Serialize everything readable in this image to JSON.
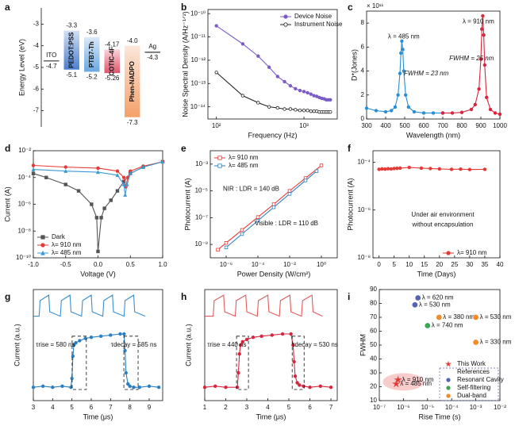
{
  "chart_data": [
    {
      "type": "energy",
      "label": "a",
      "ylabel": "Energy Level (eV)",
      "ylim": [
        -7.75,
        -2.25
      ],
      "yticks": [
        -3,
        -4,
        -5,
        -6,
        -7
      ],
      "categories": [
        "ITO",
        "PEDOT:PSS",
        "PTB7-Th",
        "COTIC-4F",
        "Phen-NADPO",
        "Ag"
      ],
      "values_top": [
        null,
        -3.3,
        -3.6,
        -4.17,
        -4.0,
        null
      ],
      "value_labels_top": [
        null,
        "-3.3",
        "-3.6",
        "-4.17",
        "-4.0",
        null
      ],
      "values_bottom": [
        -4.7,
        -5.1,
        -5.2,
        -5.26,
        -7.3,
        -4.3
      ],
      "colors": [
        "#333333",
        "#4a7fd0",
        "#6aa8e0",
        "#e0556a",
        "#f4a06a",
        "#333333"
      ]
    },
    {
      "type": "line",
      "label": "b",
      "xlabel": "Frequency (Hz)",
      "ylabel": "Noise Spectral Density (A/Hz⁻¹ᐟ²)",
      "xlog": true,
      "ylog": true,
      "xlim": [
        80,
        2400
      ],
      "xticks": [
        {
          "value": 100,
          "label": "10²"
        },
        {
          "value": 1000,
          "label": "10³"
        }
      ],
      "ylim": [
        3e-15,
        1.5e-10
      ],
      "yticks": [
        {
          "value": 1e-10,
          "label": "10⁻¹⁰"
        },
        {
          "value": 1e-11,
          "label": "10⁻¹¹"
        },
        {
          "value": 1e-12,
          "label": "10⁻¹²"
        },
        {
          "value": 1e-13,
          "label": "10⁻¹³"
        },
        {
          "value": 1e-14,
          "label": "10⁻¹⁴"
        }
      ],
      "legend": "upper-right",
      "x": [
        100,
        200,
        300,
        400,
        500,
        600,
        700,
        800,
        900,
        1000,
        1100,
        1200,
        1300,
        1400,
        1500,
        1600,
        1700,
        1800,
        1900,
        2000
      ],
      "series": [
        {
          "name": "Device Noise",
          "color": "#7b5cc7",
          "marker": "circle",
          "filled": true,
          "values": [
            3e-11,
            5e-12,
            1.5e-12,
            5e-13,
            2e-13,
            1.2e-13,
            8e-14,
            6e-14,
            5e-14,
            4.5e-14,
            4e-14,
            3.5e-14,
            3e-14,
            2.8e-14,
            2.5e-14,
            2.3e-14,
            2.2e-14,
            2e-14,
            2e-14,
            2e-14
          ]
        },
        {
          "name": "Instrument Noise",
          "color": "#222222",
          "marker": "circle",
          "filled": false,
          "values": [
            3e-13,
            3e-14,
            1.5e-14,
            1e-14,
            9e-15,
            8e-15,
            8e-15,
            7.5e-15,
            7e-15,
            7e-15,
            7e-15,
            6.5e-15,
            6.5e-15,
            6.5e-15,
            6e-15,
            6e-15,
            6e-15,
            6e-15,
            6e-15,
            6e-15
          ]
        }
      ]
    },
    {
      "type": "line",
      "label": "c",
      "xlabel": "Wavelength (nm)",
      "ylabel": "D*(Jones)",
      "y_multiplier": "× 10¹¹",
      "xlim": [
        300,
        1000
      ],
      "xticks": [
        300,
        400,
        500,
        600,
        700,
        800,
        900,
        1000
      ],
      "ylim": [
        0,
        9
      ],
      "yticks": [
        0,
        2,
        4,
        6,
        8
      ],
      "annotations": [
        "λ = 485 nm",
        "λ = 910 nm",
        "FWHM = 23 nm",
        "FWHM = 25 nm"
      ],
      "series": [
        {
          "color": "#2a8fd6",
          "marker": "circle",
          "filled": true,
          "x": [
            300,
            350,
            400,
            430,
            450,
            465,
            475,
            480,
            485,
            490,
            495,
            505,
            520,
            550,
            600,
            650,
            700
          ],
          "values": [
            0.9,
            0.7,
            0.6,
            0.7,
            1.0,
            2.0,
            3.8,
            5.5,
            6.5,
            5.8,
            4.0,
            2.0,
            1.0,
            0.6,
            0.5,
            0.5,
            0.5
          ]
        },
        {
          "color": "#d7263d",
          "marker": "circle",
          "filled": true,
          "x": [
            700,
            750,
            800,
            850,
            870,
            890,
            900,
            905,
            910,
            915,
            920,
            930,
            950,
            975,
            1000
          ],
          "values": [
            0.5,
            0.5,
            0.55,
            0.8,
            1.2,
            2.5,
            5.0,
            7.5,
            8.6,
            7.0,
            4.5,
            1.8,
            0.8,
            0.5,
            0.4
          ]
        }
      ]
    },
    {
      "type": "line",
      "label": "d",
      "xlabel": "Voltage (V)",
      "ylabel": "Current (A)",
      "ylog": true,
      "xlim": [
        -1,
        1
      ],
      "xticks": [
        {
          "value": -1,
          "label": "-1.0"
        },
        -0.5,
        {
          "value": 0,
          "label": "0.0"
        },
        0.5,
        {
          "value": 1,
          "label": "1.0"
        }
      ],
      "ylim": [
        1e-10,
        0.01
      ],
      "yticks": [
        {
          "value": 1e-10,
          "label": "10⁻¹⁰"
        },
        {
          "value": 1e-08,
          "label": "10⁻⁸"
        },
        {
          "value": 1e-06,
          "label": "10⁻⁶"
        },
        {
          "value": 0.0001,
          "label": "10⁻⁴"
        },
        {
          "value": 0.01,
          "label": "10⁻²"
        }
      ],
      "legend": "lower-left",
      "series": [
        {
          "name": "Dark",
          "color": "#555555",
          "marker": "square",
          "filled": true,
          "x": [
            -1,
            -0.8,
            -0.5,
            -0.3,
            -0.1,
            -0.02,
            0,
            0.05,
            0.1,
            0.2,
            0.3,
            0.4,
            0.5,
            0.7,
            1
          ],
          "values": [
            0.0002,
            0.0001,
            3e-05,
            1e-05,
            1e-06,
            1e-07,
            3e-10,
            1e-07,
            5e-07,
            2e-06,
            1e-05,
            5e-05,
            0.0002,
            0.0006,
            0.0015
          ]
        },
        {
          "name": "λ= 910 nm",
          "color": "#e53935",
          "marker": "circle",
          "filled": true,
          "x": [
            -1,
            -0.5,
            0,
            0.3,
            0.4,
            0.43,
            0.46,
            0.5,
            0.7,
            1
          ],
          "values": [
            0.0008,
            0.0006,
            0.0005,
            0.0003,
            0.0001,
            2e-05,
            0.0001,
            0.0003,
            0.0007,
            0.0015
          ]
        },
        {
          "name": "λ= 485 nm",
          "color": "#3a9bd5",
          "marker": "triangle",
          "filled": true,
          "x": [
            -1,
            -0.5,
            0,
            0.3,
            0.4,
            0.42,
            0.45,
            0.5,
            0.7,
            1
          ],
          "values": [
            0.0004,
            0.0003,
            0.00025,
            0.00015,
            3e-05,
            5e-06,
            3e-05,
            0.0002,
            0.0006,
            0.0015
          ]
        }
      ]
    },
    {
      "type": "line",
      "label": "e",
      "xlabel": "Power Density (W/cm²)",
      "ylabel": "Photocurrent (A)",
      "xlog": true,
      "ylog": true,
      "xlim": [
        1e-07,
        10
      ],
      "xticks": [
        {
          "value": 1e-06,
          "label": "10⁻⁶"
        },
        {
          "value": 0.0001,
          "label": "10⁻⁴"
        },
        {
          "value": 0.01,
          "label": "10⁻²"
        },
        {
          "value": 1,
          "label": "10⁰"
        }
      ],
      "ylim": [
        1e-10,
        0.01
      ],
      "yticks": [
        {
          "value": 0.001,
          "label": "10⁻³"
        },
        {
          "value": 1e-05,
          "label": "10⁻⁵"
        },
        {
          "value": 1e-07,
          "label": "10⁻⁷"
        },
        {
          "value": 1e-09,
          "label": "10⁻⁹"
        }
      ],
      "legend": "upper-left",
      "annotations": [
        "NIR : LDR = 140 dB",
        "Visible : LDR = 110 dB"
      ],
      "series": [
        {
          "name": "λ= 910 nm",
          "color": "#e53935",
          "marker": "square",
          "filled": false,
          "x": [
            3e-07,
            1e-06,
            1e-05,
            0.0001,
            0.001,
            0.01,
            0.1,
            1
          ],
          "values": [
            4e-10,
            1.3e-09,
            1.2e-08,
            1.1e-07,
            1e-06,
            1e-05,
            9e-05,
            0.0008
          ]
        },
        {
          "name": "λ= 485 nm",
          "color": "#2a7fc4",
          "marker": "square",
          "filled": false,
          "x": [
            1e-06,
            1e-05,
            0.0001,
            0.001,
            0.01,
            0.1,
            0.5
          ],
          "values": [
            6e-10,
            6e-09,
            6e-08,
            6e-07,
            6e-06,
            6e-05,
            0.0003
          ]
        }
      ]
    },
    {
      "type": "line",
      "label": "f",
      "xlabel": "Time (Days)",
      "ylabel": "Photocurrent (A)",
      "ylog": true,
      "xlim": [
        -2,
        40
      ],
      "xticks": [
        0,
        5,
        10,
        15,
        20,
        25,
        30,
        35,
        40
      ],
      "ylim": [
        1e-08,
        0.0003
      ],
      "yticks": [
        {
          "value": 0.0001,
          "label": "10⁻⁴"
        },
        {
          "value": 1e-06,
          "label": "10⁻⁶"
        },
        {
          "value": 1e-08,
          "label": "10⁻⁸"
        }
      ],
      "legend": "lower-right",
      "annotations": [
        "Under air environment",
        "without encapsulation"
      ],
      "series": [
        {
          "name": "λ= 910 nm",
          "color": "#e53935",
          "marker": "circle",
          "filled": true,
          "x": [
            0,
            1,
            2,
            3,
            4,
            5,
            6,
            7,
            10,
            14,
            17,
            20,
            24,
            27,
            30,
            35
          ],
          "values": [
            5e-05,
            5.2e-05,
            5.1e-05,
            5.3e-05,
            5.2e-05,
            5.4e-05,
            5.5e-05,
            5.6e-05,
            6e-05,
            5.6e-05,
            5.4e-05,
            5.2e-05,
            5e-05,
            5.1e-05,
            4.9e-05,
            5e-05
          ]
        }
      ]
    },
    {
      "type": "line",
      "label": "g",
      "xlabel": "Time (μs)",
      "ylabel": "Current (a.u.)",
      "xlim": [
        3,
        9.7
      ],
      "xticks": [
        3,
        4,
        5,
        6,
        7,
        8,
        9
      ],
      "ylim": [
        0,
        1
      ],
      "annotations": [
        "τrise = 580 ns",
        "τdecay = 585 ns"
      ],
      "series": [
        {
          "color": "#3a8fd0",
          "x": [
            3.0,
            3.3,
            3.35,
            3.8,
            3.85,
            4.4,
            4.45,
            4.9,
            4.95,
            5.5,
            5.55,
            6.0,
            6.05,
            6.6,
            6.65,
            7.1,
            7.15,
            7.7,
            7.75,
            8.2,
            8.25,
            8.8
          ],
          "values": [
            0.76,
            0.76,
            0.9,
            0.95,
            0.8,
            0.76,
            0.9,
            0.95,
            0.8,
            0.76,
            0.9,
            0.95,
            0.8,
            0.76,
            0.9,
            0.95,
            0.8,
            0.76,
            0.9,
            0.95,
            0.8,
            0.76
          ]
        },
        {
          "color": "#2a7fc4",
          "marker": "circle",
          "filled": true,
          "x": [
            3,
            3.5,
            4,
            4.5,
            4.95,
            5.0,
            5.05,
            5.1,
            5.2,
            5.4,
            5.7,
            6,
            6.5,
            7,
            7.5,
            7.7,
            7.75,
            7.8,
            7.9,
            8.0,
            8.2,
            8.5,
            9,
            9.5
          ],
          "values": [
            0.12,
            0.13,
            0.12,
            0.13,
            0.12,
            0.2,
            0.4,
            0.5,
            0.52,
            0.54,
            0.56,
            0.57,
            0.58,
            0.59,
            0.6,
            0.6,
            0.45,
            0.25,
            0.15,
            0.13,
            0.12,
            0.12,
            0.13,
            0.12
          ]
        }
      ]
    },
    {
      "type": "line",
      "label": "h",
      "xlabel": "Time (μs)",
      "ylabel": "Current (a.u.)",
      "xlim": [
        1,
        7.3
      ],
      "xticks": [
        1,
        2,
        3,
        4,
        5,
        6,
        7
      ],
      "ylim": [
        0,
        1
      ],
      "annotations": [
        "τrise = 440 ns",
        "τdecay = 530 ns"
      ],
      "series": [
        {
          "color": "#e05a5a",
          "x": [
            1.0,
            1.4,
            1.45,
            1.9,
            1.95,
            2.45,
            2.5,
            2.95,
            3.0,
            3.5,
            3.55,
            4.0,
            4.05,
            4.55,
            4.6,
            5.05,
            5.1,
            5.6,
            5.65,
            6.1,
            6.15,
            6.6
          ],
          "values": [
            0.76,
            0.76,
            0.9,
            0.95,
            0.8,
            0.76,
            0.9,
            0.95,
            0.8,
            0.76,
            0.9,
            0.95,
            0.8,
            0.76,
            0.9,
            0.95,
            0.8,
            0.76,
            0.9,
            0.95,
            0.8,
            0.76
          ]
        },
        {
          "color": "#d7263d",
          "marker": "circle",
          "filled": true,
          "x": [
            1,
            1.5,
            2,
            2.55,
            2.6,
            2.65,
            2.7,
            2.8,
            3,
            3.3,
            3.7,
            4.2,
            4.7,
            5.1,
            5.2,
            5.25,
            5.3,
            5.4,
            5.5,
            5.7,
            6,
            6.5,
            7
          ],
          "values": [
            0.12,
            0.13,
            0.12,
            0.12,
            0.25,
            0.42,
            0.5,
            0.53,
            0.55,
            0.57,
            0.58,
            0.59,
            0.6,
            0.6,
            0.5,
            0.35,
            0.22,
            0.16,
            0.14,
            0.13,
            0.12,
            0.13,
            0.12
          ]
        }
      ]
    },
    {
      "type": "scatter",
      "label": "i",
      "xlabel": "Rise Time (s)",
      "ylabel": "FWHM",
      "xlog": true,
      "xlim": [
        1e-07,
        0.01
      ],
      "xticks": [
        {
          "value": 1e-07,
          "label": "10⁻⁷"
        },
        {
          "value": 1e-06,
          "label": "10⁻⁶"
        },
        {
          "value": 1e-05,
          "label": "10⁻⁵"
        },
        {
          "value": 0.0001,
          "label": "10⁻⁴"
        },
        {
          "value": 0.001,
          "label": "10⁻³"
        },
        {
          "value": 0.01,
          "label": "10⁻²"
        }
      ],
      "ylim": [
        10,
        90
      ],
      "yticks": [
        10,
        20,
        30,
        40,
        50,
        60,
        70,
        80,
        90
      ],
      "legend": "lower-right",
      "legend_title": "References",
      "series": [
        {
          "name": "This Work",
          "color": "#e53935",
          "marker": "star",
          "x": [
            6e-07,
            5e-07
          ],
          "values": [
            25,
            22
          ],
          "point_labels": [
            "λ = 910 nm",
            "λ = 485 nm"
          ]
        },
        {
          "name": "Resonant Cavity",
          "color": "#5563b5",
          "marker": "circle",
          "x": [
            4e-06,
            3e-06
          ],
          "values": [
            84,
            79
          ],
          "point_labels": [
            "λ = 620 nm",
            "λ = 530 nm"
          ]
        },
        {
          "name": "Self-filtering",
          "color": "#3aa655",
          "marker": "circle",
          "x": [
            1e-05
          ],
          "values": [
            64
          ],
          "point_labels": [
            "λ = 740 nm"
          ]
        },
        {
          "name": "Dual-band",
          "color": "#f28c28",
          "marker": "circle",
          "x": [
            3e-05,
            0.001,
            0.001
          ],
          "values": [
            70,
            70,
            52
          ],
          "point_labels": [
            "λ = 380 nm",
            "λ = 530 nm",
            "λ = 330 nm"
          ]
        }
      ]
    }
  ]
}
